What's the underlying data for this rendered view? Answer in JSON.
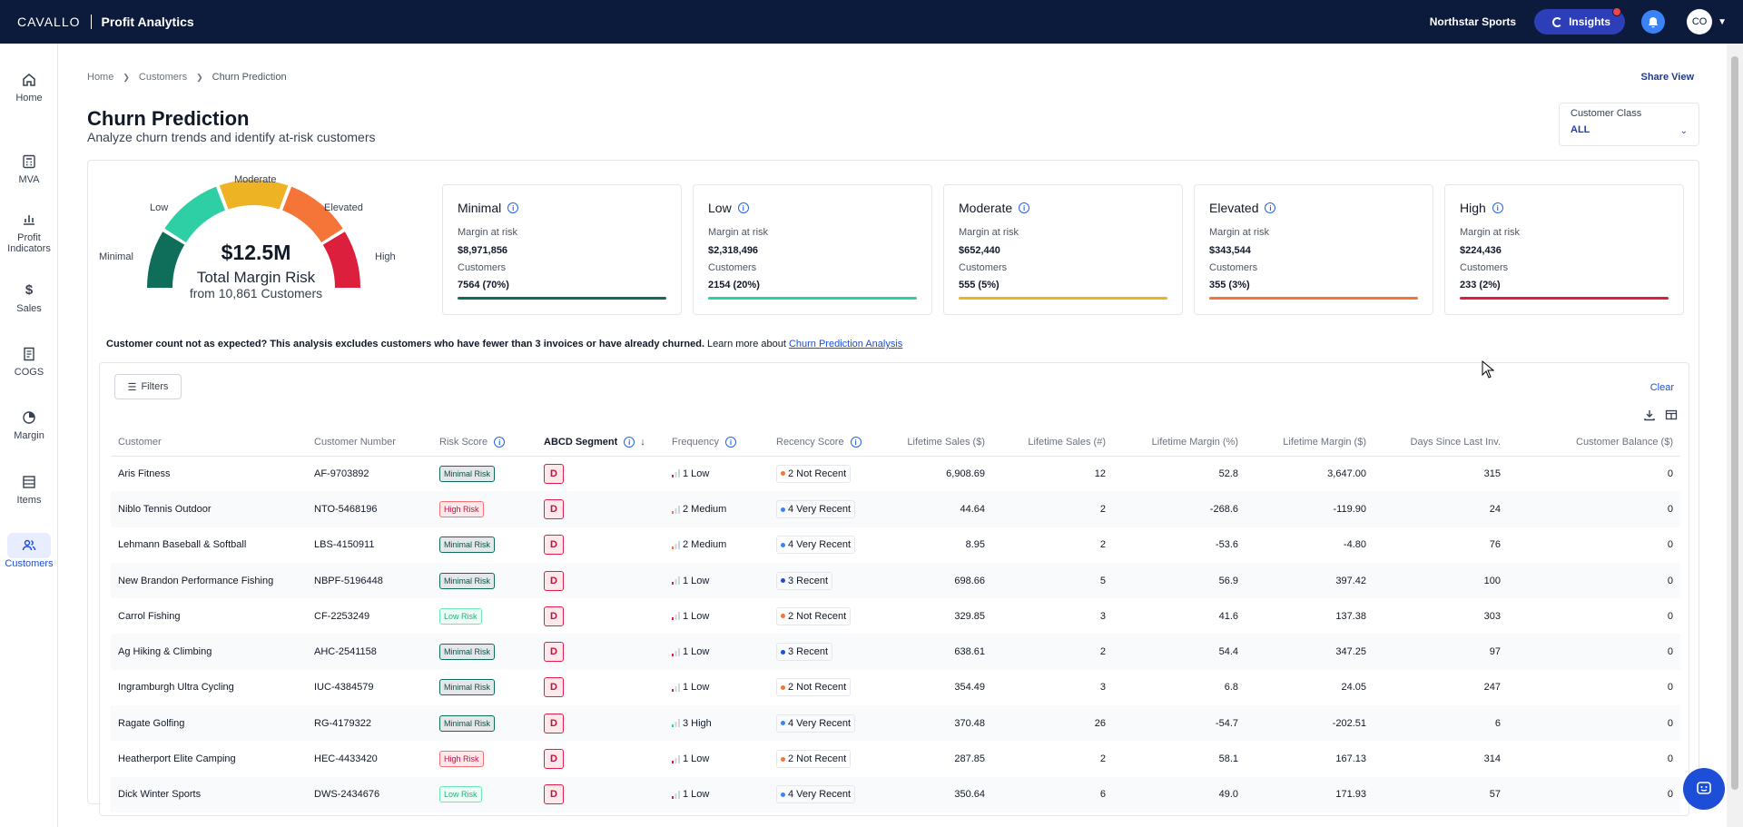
{
  "header": {
    "logo": "CAVALLO",
    "product": "Profit Analytics",
    "company": "Northstar Sports",
    "insights_label": "Insights",
    "avatar_initials": "CO"
  },
  "sidebar": {
    "items": [
      {
        "label": "Home",
        "icon": "home-icon"
      },
      {
        "label": "MVA",
        "icon": "calculator-icon"
      },
      {
        "label": "Profit\nIndicators",
        "icon": "indicators-icon"
      },
      {
        "label": "Sales",
        "icon": "dollar-icon"
      },
      {
        "label": "COGS",
        "icon": "receipt-icon"
      },
      {
        "label": "Margin",
        "icon": "pie-icon"
      },
      {
        "label": "Items",
        "icon": "items-icon"
      },
      {
        "label": "Customers",
        "icon": "customers-icon"
      }
    ],
    "active": "Customers"
  },
  "breadcrumb": [
    "Home",
    "Customers",
    "Churn Prediction"
  ],
  "share_view": "Share View",
  "page": {
    "title": "Churn Prediction",
    "subtitle": "Analyze churn trends and identify at-risk customers"
  },
  "customer_class": {
    "label": "Customer Class",
    "value": "ALL"
  },
  "gauge": {
    "amount": "$12.5M",
    "label": "Total Margin Risk",
    "sub": "from 10,861 Customers",
    "segments": [
      "Minimal",
      "Low",
      "Moderate",
      "Elevated",
      "High"
    ]
  },
  "risk_cards": [
    {
      "name": "Minimal",
      "k1": "Margin at risk",
      "v1": "$8,971,856",
      "k2": "Customers",
      "v2": "7564 (70%)",
      "color": "#0e6e5a"
    },
    {
      "name": "Low",
      "k1": "Margin at risk",
      "v1": "$2,318,496",
      "k2": "Customers",
      "v2": "2154 (20%)",
      "color": "#2fcfa6"
    },
    {
      "name": "Moderate",
      "k1": "Margin at risk",
      "v1": "$652,440",
      "k2": "Customers",
      "v2": "555 (5%)",
      "color": "#eeb324"
    },
    {
      "name": "Elevated",
      "k1": "Margin at risk",
      "v1": "$343,544",
      "k2": "Customers",
      "v2": "355 (3%)",
      "color": "#f57438"
    },
    {
      "name": "High",
      "k1": "Margin at risk",
      "v1": "$224,436",
      "k2": "Customers",
      "v2": "233 (2%)",
      "color": "#dc1f3c"
    }
  ],
  "notice": {
    "bold": "Customer count not as expected? This analysis excludes customers who have fewer than 3 invoices or have already churned.",
    "text": " Learn more about ",
    "link": "Churn Prediction Analysis"
  },
  "table": {
    "filters_label": "Filters",
    "clear_label": "Clear",
    "columns": [
      "Customer",
      "Customer Number",
      "Risk Score",
      "ABCD Segment",
      "Frequency",
      "Recency Score",
      "Lifetime Sales ($)",
      "Lifetime Sales (#)",
      "Lifetime Margin (%)",
      "Lifetime Margin ($)",
      "Days Since Last Inv.",
      "Customer Balance ($)"
    ],
    "rows": [
      {
        "customer": "Aris Fitness",
        "number": "AF-9703892",
        "risk": "Minimal Risk",
        "segment": "D",
        "freq": "1 Low",
        "recency": "2 Not Recent",
        "sales": "6,908.69",
        "count": "12",
        "margin_pct": "52.8",
        "margin": "3,647.00",
        "days": "315",
        "balance": "0"
      },
      {
        "customer": "Niblo Tennis Outdoor",
        "number": "NTO-5468196",
        "risk": "High Risk",
        "segment": "D",
        "freq": "2 Medium",
        "recency": "4 Very Recent",
        "sales": "44.64",
        "count": "2",
        "margin_pct": "-268.6",
        "margin": "-119.90",
        "days": "24",
        "balance": "0"
      },
      {
        "customer": "Lehmann Baseball & Softball",
        "number": "LBS-4150911",
        "risk": "Minimal Risk",
        "segment": "D",
        "freq": "2 Medium",
        "recency": "4 Very Recent",
        "sales": "8.95",
        "count": "2",
        "margin_pct": "-53.6",
        "margin": "-4.80",
        "days": "76",
        "balance": "0"
      },
      {
        "customer": "New Brandon Performance Fishing",
        "number": "NBPF-5196448",
        "risk": "Minimal Risk",
        "segment": "D",
        "freq": "1 Low",
        "recency": "3 Recent",
        "sales": "698.66",
        "count": "5",
        "margin_pct": "56.9",
        "margin": "397.42",
        "days": "100",
        "balance": "0"
      },
      {
        "customer": "Carrol Fishing",
        "number": "CF-2253249",
        "risk": "Low Risk",
        "segment": "D",
        "freq": "1 Low",
        "recency": "2 Not Recent",
        "sales": "329.85",
        "count": "3",
        "margin_pct": "41.6",
        "margin": "137.38",
        "days": "303",
        "balance": "0"
      },
      {
        "customer": "Ag Hiking & Climbing",
        "number": "AHC-2541158",
        "risk": "Minimal Risk",
        "segment": "D",
        "freq": "1 Low",
        "recency": "3 Recent",
        "sales": "638.61",
        "count": "2",
        "margin_pct": "54.4",
        "margin": "347.25",
        "days": "97",
        "balance": "0"
      },
      {
        "customer": "Ingramburgh Ultra Cycling",
        "number": "IUC-4384579",
        "risk": "Minimal Risk",
        "segment": "D",
        "freq": "1 Low",
        "recency": "2 Not Recent",
        "sales": "354.49",
        "count": "3",
        "margin_pct": "6.8",
        "margin": "24.05",
        "days": "247",
        "balance": "0"
      },
      {
        "customer": "Ragate Golfing",
        "number": "RG-4179322",
        "risk": "Minimal Risk",
        "segment": "D",
        "freq": "3 High",
        "recency": "4 Very Recent",
        "sales": "370.48",
        "count": "26",
        "margin_pct": "-54.7",
        "margin": "-202.51",
        "days": "6",
        "balance": "0"
      },
      {
        "customer": "Heatherport Elite Camping",
        "number": "HEC-4433420",
        "risk": "High Risk",
        "segment": "D",
        "freq": "1 Low",
        "recency": "2 Not Recent",
        "sales": "287.85",
        "count": "2",
        "margin_pct": "58.1",
        "margin": "167.13",
        "days": "314",
        "balance": "0"
      },
      {
        "customer": "Dick Winter Sports",
        "number": "DWS-2434676",
        "risk": "Low Risk",
        "segment": "D",
        "freq": "1 Low",
        "recency": "4 Very Recent",
        "sales": "350.64",
        "count": "6",
        "margin_pct": "49.0",
        "margin": "171.93",
        "days": "57",
        "balance": "0"
      }
    ]
  }
}
